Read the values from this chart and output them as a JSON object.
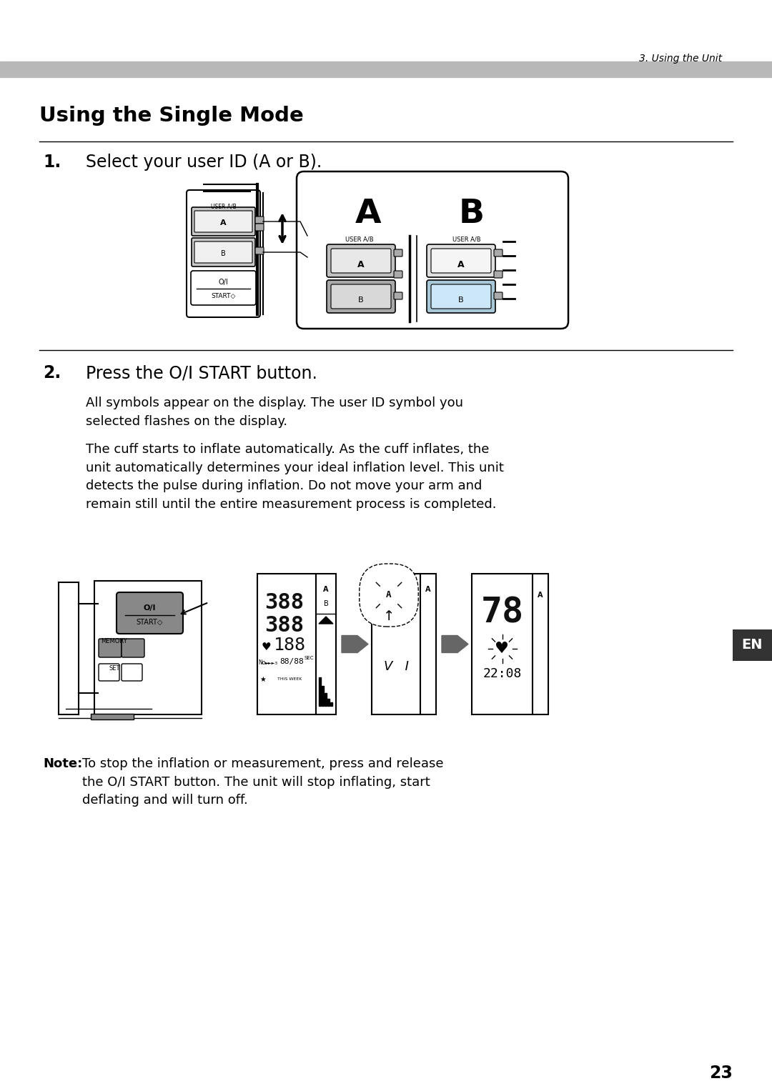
{
  "page_bg": "#ffffff",
  "header_bar_color": "#b8b8b8",
  "header_text": "3. Using the Unit",
  "title": "Using the Single Mode",
  "title_fontsize": 21,
  "step1_number": "1.",
  "step1_text": "Select your user ID (A or B).",
  "step1_fontsize": 17,
  "step2_number": "2.",
  "step2_text": "Press the O/I START button.",
  "step2_fontsize": 17,
  "step2_para1": "All symbols appear on the display. The user ID symbol you\nselected flashes on the display.",
  "step2_para2": "The cuff starts to inflate automatically. As the cuff inflates, the\nunit automatically determines your ideal inflation level. This unit\ndetects the pulse during inflation. Do not move your arm and\nremain still until the entire measurement process is completed.",
  "note_label": "Note:",
  "note_text": "To stop the inflation or measurement, press and release\nthe O/I START button. The unit will stop inflating, start\ndeflating and will turn off.",
  "page_number": "23",
  "en_label": "EN",
  "body_fontsize": 13,
  "note_fontsize": 13
}
